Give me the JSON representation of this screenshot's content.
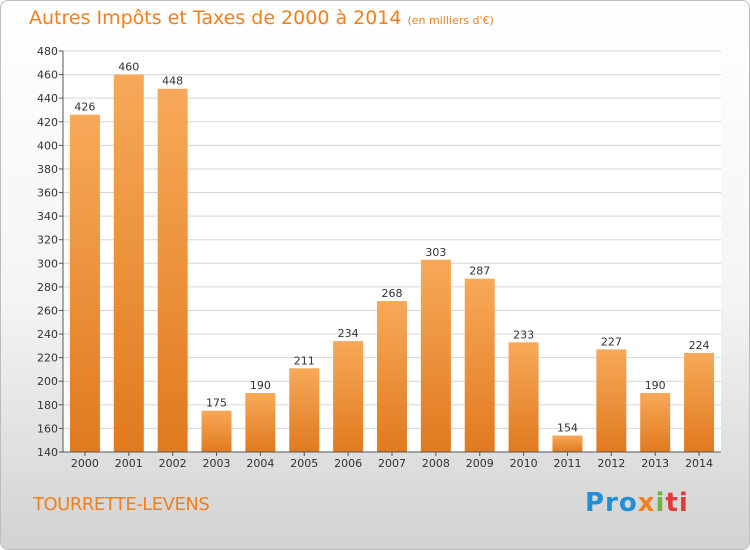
{
  "header": {
    "title": "Autres Impôts et Taxes de 2000 à 2014",
    "subtitle": "(en milliers d'€)"
  },
  "footer": {
    "location": "TOURRETTE-LEVENS",
    "logo": "Proxiti",
    "logo_parts": [
      "Pro",
      "x",
      "i",
      "ti"
    ]
  },
  "colors": {
    "bar_top": "#f7a959",
    "bar_bottom": "#e07a1f",
    "title": "#f07f1e"
  },
  "chart_data": {
    "type": "bar",
    "categories": [
      "2000",
      "2001",
      "2002",
      "2003",
      "2004",
      "2005",
      "2006",
      "2007",
      "2008",
      "2009",
      "2010",
      "2011",
      "2012",
      "2013",
      "2014"
    ],
    "values": [
      426,
      460,
      448,
      175,
      190,
      211,
      234,
      268,
      303,
      287,
      233,
      154,
      227,
      190,
      224
    ],
    "ylim": [
      140,
      480
    ],
    "yticks": [
      140,
      160,
      180,
      200,
      220,
      240,
      260,
      280,
      300,
      320,
      340,
      360,
      380,
      400,
      420,
      440,
      460,
      480
    ],
    "grid": true,
    "xlabel": "",
    "ylabel": ""
  }
}
